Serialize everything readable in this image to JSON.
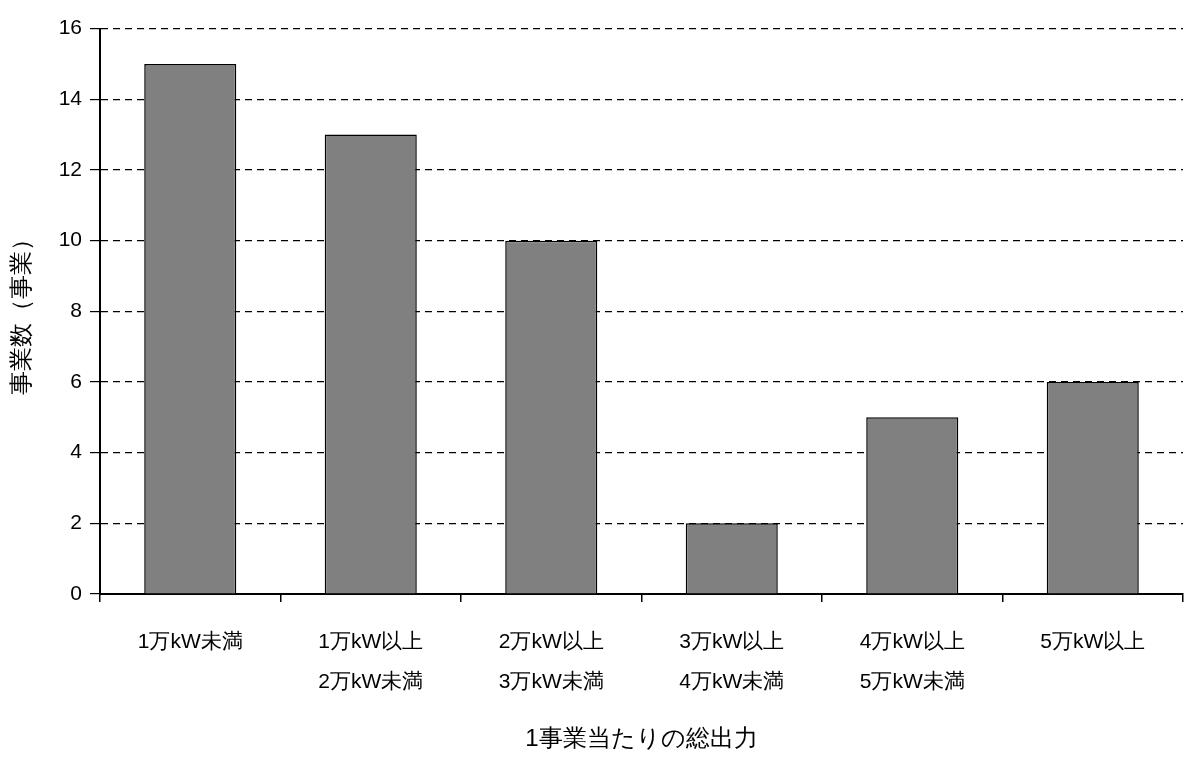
{
  "chart_data": {
    "type": "bar",
    "xlabel": "1事業当たりの総出力",
    "ylabel": "事業数（事業）",
    "categories": [
      "1万kW未満",
      "1万kW以上\n2万kW未満",
      "2万kW以上\n3万kW未満",
      "3万kW以上\n4万kW未満",
      "4万kW以上\n5万kW未満",
      "5万kW以上"
    ],
    "values": [
      15,
      13,
      10,
      2,
      5,
      6
    ],
    "color": "#808080",
    "ylim": [
      0,
      16
    ],
    "yticks": [
      0,
      2,
      4,
      6,
      8,
      10,
      12,
      14,
      16
    ],
    "grid": "y"
  }
}
